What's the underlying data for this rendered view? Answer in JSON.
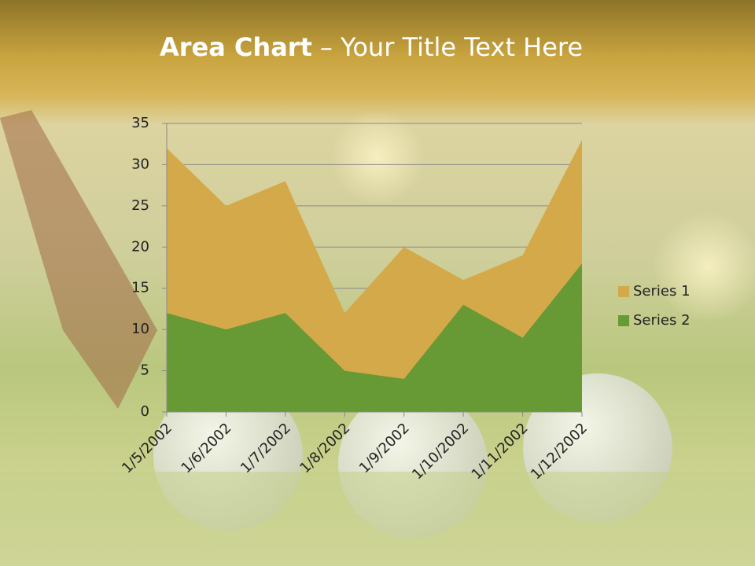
{
  "chart_data": {
    "type": "area",
    "title": {
      "bold": "Area Chart",
      "rest": "– Your Title Text Here"
    },
    "categories": [
      "1/5/2002",
      "1/6/2002",
      "1/7/2002",
      "1/8/2002",
      "1/9/2002",
      "1/10/2002",
      "1/11/2002",
      "1/12/2002"
    ],
    "series": [
      {
        "name": "Series 1",
        "color": "#d4a94a",
        "values": [
          32,
          25,
          28,
          12,
          20,
          16,
          19,
          33
        ]
      },
      {
        "name": "Series 2",
        "color": "#679a34",
        "values": [
          12,
          10,
          12,
          5,
          4,
          13,
          9,
          18
        ]
      }
    ],
    "ylim": [
      0,
      35
    ],
    "yticks": [
      0,
      5,
      10,
      15,
      20,
      25,
      30,
      35
    ],
    "grid": true,
    "legend": "right"
  }
}
